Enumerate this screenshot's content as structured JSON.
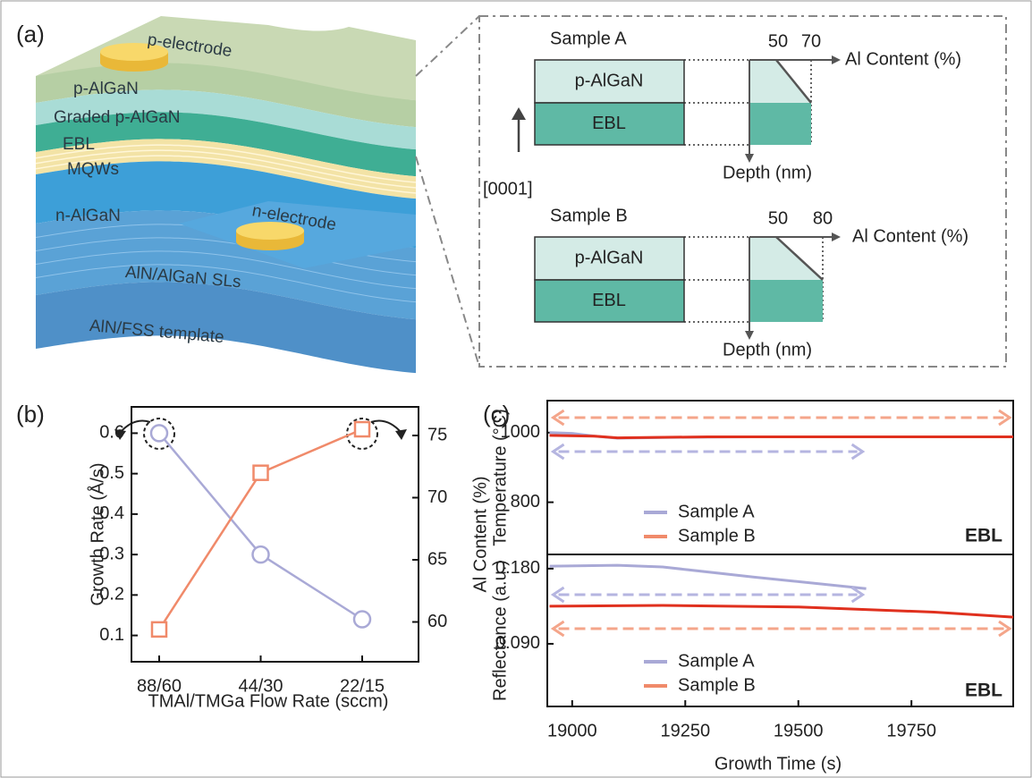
{
  "panel_labels": [
    "(a)",
    "(b)",
    "(c)"
  ],
  "diagram": {
    "layers": [
      "p-electrode",
      "p-AlGaN",
      "Graded p-AlGaN",
      "EBL",
      "MQWs",
      "n-AlGaN",
      "n-electrode",
      "AlN/AlGaN SLs",
      "AlN/FSS template"
    ],
    "growth_direction": "[0001]",
    "samples": [
      {
        "name": "Sample A",
        "ticks": [
          "50",
          "70"
        ],
        "layers": [
          "p-AlGaN",
          "EBL"
        ],
        "x_axis": "Al Content (%)",
        "y_axis": "Depth (nm)"
      },
      {
        "name": "Sample B",
        "ticks": [
          "50",
          "80"
        ],
        "layers": [
          "p-AlGaN",
          "EBL"
        ],
        "x_axis": "Al Content (%)",
        "y_axis": "Depth (nm)"
      }
    ]
  },
  "chart_data": [
    {
      "type": "line",
      "x_label": "TMAl/TMGa Flow Rate (sccm)",
      "y_label": "Growth Rate (Å/s)",
      "y2_label": "Al Content (%)",
      "categories": [
        "88/60",
        "44/30",
        "22/15"
      ],
      "series": [
        {
          "color": "#a9a9d6",
          "marker": "circle",
          "values": [
            0.6,
            0.3,
            0.14
          ]
        },
        {
          "color": "#f08a6a",
          "marker": "square",
          "axis": "y2",
          "values": [
            59.4,
            72,
            75.5
          ]
        }
      ],
      "ylim": [
        0.035,
        0.665
      ],
      "yticks": [
        0.1,
        0.2,
        0.3,
        0.4,
        0.5,
        0.6
      ],
      "y2lim": [
        56.8,
        77.3
      ],
      "y2ticks": [
        60,
        65,
        70,
        75
      ]
    },
    {
      "type": "line",
      "y_label": "Temperature (°C)",
      "annotation": "EBL",
      "legend": "lower left",
      "series": [
        {
          "name": "Sample A",
          "color": "#a9a9d6",
          "x": [
            18950,
            19000,
            19050,
            19100,
            19200,
            19400,
            19650
          ],
          "values": [
            1000,
            998,
            990,
            984,
            986,
            988,
            988
          ]
        },
        {
          "name": "Sample B",
          "color": "#e0301e",
          "x": [
            18950,
            19050,
            19100,
            19300,
            19650,
            19975
          ],
          "values": [
            992,
            990,
            985,
            988,
            988,
            988
          ]
        }
      ],
      "xlim": [
        18945,
        19975
      ],
      "ylim": [
        650,
        1092
      ],
      "yticks": [
        800,
        1000
      ]
    },
    {
      "type": "line",
      "x_label": "Growth Time (s)",
      "y_label": "Reflectance (a.u.)",
      "annotation": "EBL",
      "legend": "lower left",
      "series": [
        {
          "name": "Sample A",
          "color": "#a9a9d6",
          "x": [
            18950,
            19100,
            19200,
            19400,
            19650
          ],
          "values": [
            0.183,
            0.184,
            0.182,
            0.17,
            0.156
          ]
        },
        {
          "name": "Sample B",
          "color": "#e0301e",
          "x": [
            18950,
            19200,
            19500,
            19800,
            19975
          ],
          "values": [
            0.135,
            0.136,
            0.134,
            0.128,
            0.122
          ]
        }
      ],
      "xlim": [
        18945,
        19975
      ],
      "xticks": [
        19000,
        19250,
        19500,
        19750
      ],
      "ylim": [
        0.015,
        0.197
      ],
      "yticks": [
        {
          "value": 0.09,
          "label": "0.090"
        },
        {
          "value": 0.18,
          "label": "0.180"
        }
      ]
    }
  ]
}
